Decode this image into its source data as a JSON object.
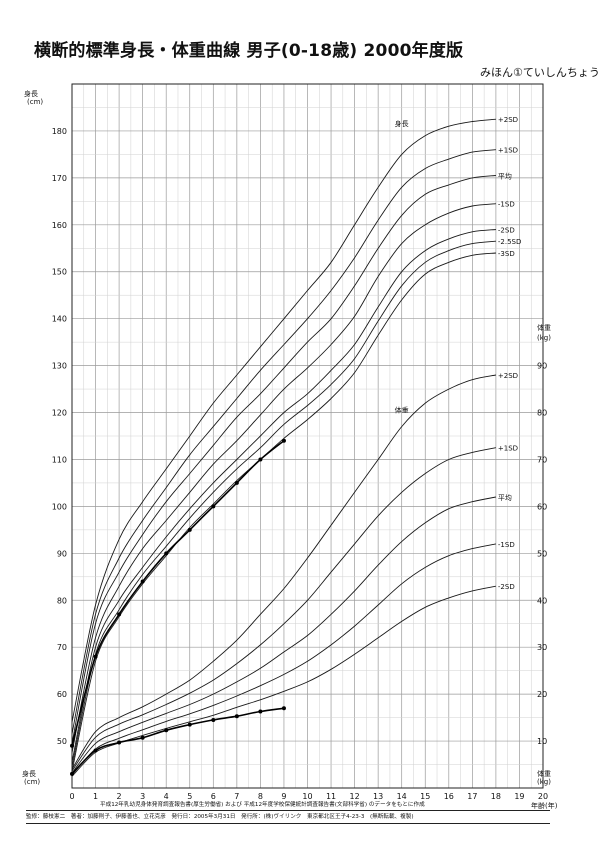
{
  "title": "横断的標準身長・体重曲線 男子(0-18歳) 2000年度版",
  "subtitle": "みほん①ていしんちょう",
  "chart_data": {
    "type": "line",
    "x": {
      "label": "年齢(年)",
      "min": 0,
      "max": 20,
      "ticks": [
        0,
        1,
        2,
        3,
        4,
        5,
        6,
        7,
        8,
        9,
        10,
        11,
        12,
        13,
        14,
        15,
        16,
        17,
        18,
        19,
        20
      ]
    },
    "height_axis": {
      "label": "身長",
      "unit": "(cm)",
      "min": 40,
      "max": 190,
      "ticks": [
        50,
        60,
        70,
        80,
        90,
        100,
        110,
        120,
        130,
        140,
        150,
        160,
        170,
        180
      ]
    },
    "weight_axis": {
      "label": "体重",
      "unit": "(kg)",
      "min": 0,
      "max": 100,
      "ticks": [
        10,
        20,
        30,
        40,
        50,
        60,
        70,
        80,
        90
      ]
    },
    "grid": true,
    "height_title": "身長",
    "weight_title": "体重",
    "height_series": [
      {
        "name": "+2SD",
        "x": [
          0,
          1,
          2,
          3,
          4,
          5,
          6,
          7,
          8,
          9,
          10,
          11,
          12,
          13,
          14,
          15,
          16,
          17,
          18
        ],
        "y": [
          54,
          79,
          93,
          101,
          108,
          115,
          122,
          128,
          134,
          140,
          146,
          152,
          160,
          168,
          175,
          179,
          181,
          182,
          182.5
        ]
      },
      {
        "name": "+1SD",
        "x": [
          0,
          1,
          2,
          3,
          4,
          5,
          6,
          7,
          8,
          9,
          10,
          11,
          12,
          13,
          14,
          15,
          16,
          17,
          18
        ],
        "y": [
          51.5,
          77,
          89,
          97,
          104,
          111,
          117,
          123,
          129,
          134.5,
          140,
          146,
          153,
          161,
          168,
          172,
          174,
          175.5,
          176
        ]
      },
      {
        "name": "平均",
        "x": [
          0,
          1,
          2,
          3,
          4,
          5,
          6,
          7,
          8,
          9,
          10,
          11,
          12,
          13,
          14,
          15,
          16,
          17,
          18
        ],
        "y": [
          49.5,
          75,
          86,
          94,
          101,
          107,
          113,
          119,
          124,
          129.5,
          135,
          140,
          147,
          155,
          162,
          166.5,
          168.5,
          170,
          170.5
        ]
      },
      {
        "name": "-1SD",
        "x": [
          0,
          1,
          2,
          3,
          4,
          5,
          6,
          7,
          8,
          9,
          10,
          11,
          12,
          13,
          14,
          15,
          16,
          17,
          18
        ],
        "y": [
          47.5,
          72,
          83,
          91,
          97,
          103,
          109,
          114,
          119.5,
          125,
          129.5,
          134.5,
          140.5,
          149,
          156,
          160,
          162.5,
          164,
          164.5
        ]
      },
      {
        "name": "-2SD",
        "x": [
          0,
          1,
          2,
          3,
          4,
          5,
          6,
          7,
          8,
          9,
          10,
          11,
          12,
          13,
          14,
          15,
          16,
          17,
          18
        ],
        "y": [
          45.5,
          70,
          80,
          87,
          93.5,
          99.5,
          105,
          110,
          115,
          120,
          124,
          129,
          134.5,
          142.5,
          150,
          154.5,
          157,
          158.5,
          159
        ]
      },
      {
        "name": "-2.5SD",
        "x": [
          0,
          1,
          2,
          3,
          4,
          5,
          6,
          7,
          8,
          9,
          10,
          11,
          12,
          13,
          14,
          15,
          16,
          17,
          18
        ],
        "y": [
          44.5,
          68.5,
          78,
          85.5,
          91.5,
          97.5,
          103,
          108,
          112.5,
          117.5,
          121.5,
          126,
          131.5,
          139.5,
          147,
          152,
          154.5,
          156,
          156.5
        ]
      },
      {
        "name": "-3SD",
        "x": [
          0,
          1,
          2,
          3,
          4,
          5,
          6,
          7,
          8,
          9,
          10,
          11,
          12,
          13,
          14,
          15,
          16,
          17,
          18
        ],
        "y": [
          43.5,
          67,
          76.5,
          83.5,
          89.5,
          95.5,
          100.5,
          105.5,
          110,
          114.5,
          118.5,
          123,
          128.5,
          136.5,
          144,
          149.5,
          152,
          153.5,
          154
        ]
      }
    ],
    "weight_series": [
      {
        "name": "+2SD",
        "x": [
          0,
          1,
          2,
          3,
          4,
          5,
          6,
          7,
          8,
          9,
          10,
          11,
          12,
          13,
          14,
          15,
          16,
          17,
          18
        ],
        "y": [
          4.0,
          12.0,
          15.0,
          17.3,
          20,
          23,
          27,
          31.5,
          37,
          42.5,
          49,
          56,
          63,
          70,
          77,
          82,
          85,
          87,
          88
        ]
      },
      {
        "name": "+1SD",
        "x": [
          0,
          1,
          2,
          3,
          4,
          5,
          6,
          7,
          8,
          9,
          10,
          11,
          12,
          13,
          14,
          15,
          16,
          17,
          18
        ],
        "y": [
          3.6,
          10.8,
          13.6,
          15.6,
          17.8,
          20.2,
          23,
          26.5,
          30.5,
          35,
          40,
          46,
          52,
          58,
          63,
          67,
          70,
          71.5,
          72.5
        ]
      },
      {
        "name": "平均",
        "x": [
          0,
          1,
          2,
          3,
          4,
          5,
          6,
          7,
          8,
          9,
          10,
          11,
          12,
          13,
          14,
          15,
          16,
          17,
          18
        ],
        "y": [
          3.2,
          9.5,
          12,
          14,
          15.9,
          17.8,
          20,
          22.6,
          25.5,
          29,
          32.5,
          37,
          42,
          47.5,
          52.5,
          56.5,
          59.5,
          61,
          62
        ]
      },
      {
        "name": "-1SD",
        "x": [
          0,
          1,
          2,
          3,
          4,
          5,
          6,
          7,
          8,
          9,
          10,
          11,
          12,
          13,
          14,
          15,
          16,
          17,
          18
        ],
        "y": [
          2.8,
          8.3,
          10.6,
          12.4,
          14.2,
          15.8,
          17.6,
          19.6,
          21.8,
          24.2,
          27,
          30.5,
          34.5,
          39,
          43.5,
          47,
          49.5,
          51,
          52
        ]
      },
      {
        "name": "-2SD",
        "x": [
          0,
          1,
          2,
          3,
          4,
          5,
          6,
          7,
          8,
          9,
          10,
          11,
          12,
          13,
          14,
          15,
          16,
          17,
          18
        ],
        "y": [
          2.5,
          7.6,
          9.6,
          11.2,
          12.7,
          14.1,
          15.5,
          17.2,
          18.8,
          20.6,
          22.6,
          25.3,
          28.5,
          32,
          35.5,
          38.5,
          40.5,
          42,
          43
        ]
      }
    ],
    "patient_height": {
      "x": [
        0,
        1,
        2,
        3,
        4,
        5,
        6,
        7,
        8,
        9
      ],
      "y": [
        49,
        68,
        77,
        84,
        90,
        95,
        100,
        105,
        110,
        114
      ]
    },
    "patient_weight": {
      "x": [
        0,
        1,
        2,
        3,
        4,
        5,
        6,
        7,
        8,
        9
      ],
      "y": [
        3,
        8,
        9.7,
        10.7,
        12.3,
        13.5,
        14.5,
        15.3,
        16.3,
        17
      ]
    }
  },
  "footer": {
    "source": "平成12年乳幼児身体発育調査報告書(厚生労働省) および 平成12年度学校保健統計調査報告書(文部科学省) のデータをもとに作成",
    "credits": "監修：藤枝憲二　著者：加藤則子、伊藤善也、立花克彦　発行日：2005年3月31日　発行所：(株)ヴイリンク　東京都北区王子4-23-3　(無断転載、複製)"
  }
}
